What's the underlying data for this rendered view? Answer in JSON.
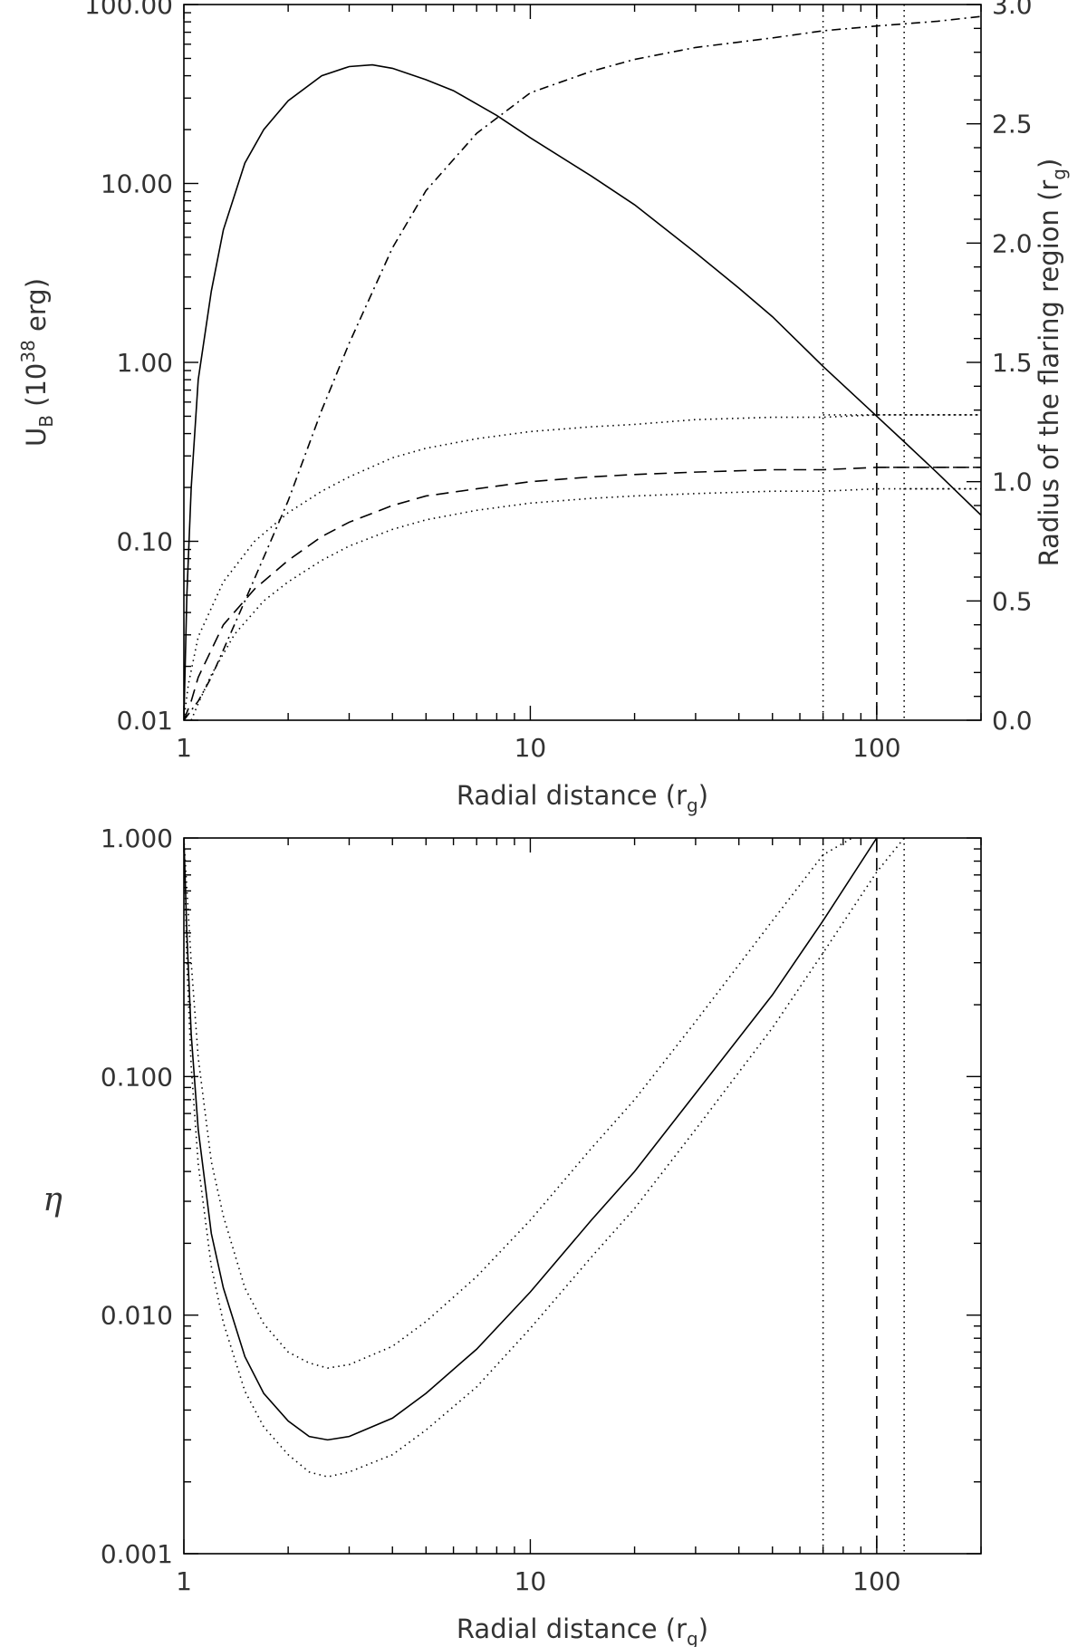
{
  "chart_data": [
    {
      "type": "line",
      "panel": "top",
      "xlabel": "Radial distance (r_g)",
      "ylabel_left": "U_B (10^38 erg)",
      "ylabel_right": "Radius of the flaring region (r_g)",
      "x_scale": "log",
      "xlim": [
        1,
        200
      ],
      "ylim_left": [
        0.01,
        100
      ],
      "ylim_left_scale": "log",
      "ylim_right": [
        0,
        3.0
      ],
      "ylim_right_scale": "linear",
      "x_tick_labels": [
        "1",
        "10",
        "100"
      ],
      "y_left_tick_labels": [
        "0.01",
        "0.10",
        "1.00",
        "10.00",
        "100.00"
      ],
      "y_right_tick_labels": [
        "0.0",
        "0.5",
        "1.0",
        "1.5",
        "2.0",
        "2.5",
        "3.0"
      ],
      "series": [
        {
          "axis": "left",
          "style": "solid",
          "x": [
            1.0,
            1.02,
            1.05,
            1.1,
            1.2,
            1.3,
            1.5,
            1.7,
            2.0,
            2.5,
            3.0,
            3.5,
            4.0,
            5.0,
            6.0,
            8.0,
            10,
            15,
            20,
            30,
            40,
            50,
            70,
            100,
            120,
            150,
            200
          ],
          "y": [
            0.01,
            0.05,
            0.2,
            0.8,
            2.5,
            5.5,
            13,
            20,
            29,
            40,
            45,
            46,
            44,
            38,
            33,
            24,
            18,
            11,
            7.6,
            4.1,
            2.6,
            1.8,
            0.95,
            0.5,
            0.36,
            0.24,
            0.14
          ]
        },
        {
          "axis": "right",
          "style": "dash-dot",
          "x": [
            1.0,
            1.1,
            1.2,
            1.5,
            2.0,
            2.5,
            3.0,
            4.0,
            5.0,
            7.0,
            10,
            15,
            20,
            30,
            50,
            70,
            100,
            150,
            200
          ],
          "y": [
            0.0,
            0.08,
            0.18,
            0.5,
            0.92,
            1.3,
            1.58,
            1.98,
            2.22,
            2.46,
            2.63,
            2.72,
            2.77,
            2.82,
            2.86,
            2.89,
            2.91,
            2.93,
            2.95
          ]
        },
        {
          "axis": "right",
          "style": "dotted",
          "x": [
            1.0,
            1.03,
            1.1,
            1.3,
            1.6,
            2.0,
            2.5,
            3.0,
            4.0,
            5.0,
            7.0,
            10,
            15,
            20,
            30,
            50,
            70,
            100,
            200
          ],
          "y": [
            0.0,
            0.15,
            0.35,
            0.58,
            0.75,
            0.87,
            0.96,
            1.02,
            1.1,
            1.14,
            1.18,
            1.21,
            1.23,
            1.24,
            1.26,
            1.27,
            1.27,
            1.28,
            1.28
          ]
        },
        {
          "axis": "right",
          "style": "dashed",
          "x": [
            1.0,
            1.05,
            1.1,
            1.3,
            1.6,
            2.0,
            2.5,
            3.0,
            4.0,
            5.0,
            7.0,
            10,
            15,
            20,
            30,
            50,
            70,
            100,
            200
          ],
          "y": [
            0.0,
            0.08,
            0.18,
            0.4,
            0.55,
            0.67,
            0.77,
            0.83,
            0.9,
            0.94,
            0.97,
            1.0,
            1.02,
            1.03,
            1.04,
            1.05,
            1.05,
            1.06,
            1.06
          ]
        },
        {
          "axis": "right",
          "style": "dotted",
          "x": [
            1.05,
            1.1,
            1.2,
            1.4,
            1.7,
            2.0,
            2.5,
            3.0,
            4.0,
            5.0,
            7.0,
            10,
            15,
            20,
            30,
            50,
            70,
            100,
            200
          ],
          "y": [
            0.0,
            0.07,
            0.19,
            0.36,
            0.5,
            0.58,
            0.67,
            0.73,
            0.8,
            0.84,
            0.88,
            0.91,
            0.93,
            0.94,
            0.95,
            0.96,
            0.96,
            0.97,
            0.97
          ]
        }
      ],
      "vlines": [
        {
          "x": 70,
          "style": "dotted"
        },
        {
          "x": 100,
          "style": "dashed"
        },
        {
          "x": 120,
          "style": "dotted"
        }
      ],
      "hlines": [
        {
          "x_from": 70,
          "y": 1.28,
          "axis": "right",
          "style": "dotted"
        },
        {
          "x_from": 100,
          "y": 1.06,
          "axis": "right",
          "style": "dashed"
        },
        {
          "x_from": 120,
          "y": 0.97,
          "axis": "right",
          "style": "dotted"
        }
      ]
    },
    {
      "type": "line",
      "panel": "bottom",
      "xlabel": "Radial distance (r_g)",
      "ylabel": "η",
      "x_scale": "log",
      "y_scale": "log",
      "xlim": [
        1,
        200
      ],
      "ylim": [
        0.001,
        1.0
      ],
      "x_tick_labels": [
        "1",
        "10",
        "100"
      ],
      "y_tick_labels": [
        "0.001",
        "0.010",
        "0.100",
        "1.000"
      ],
      "series": [
        {
          "style": "solid",
          "x": [
            1.0,
            1.02,
            1.05,
            1.1,
            1.2,
            1.3,
            1.5,
            1.7,
            2.0,
            2.3,
            2.6,
            3.0,
            4.0,
            5.0,
            7.0,
            10,
            15,
            20,
            30,
            50,
            70,
            100
          ],
          "y": [
            1.0,
            0.4,
            0.15,
            0.06,
            0.022,
            0.013,
            0.0067,
            0.0047,
            0.0036,
            0.0031,
            0.003,
            0.0031,
            0.0037,
            0.0047,
            0.0072,
            0.0125,
            0.025,
            0.04,
            0.085,
            0.22,
            0.45,
            1.0
          ]
        },
        {
          "style": "dotted",
          "x": [
            1.0,
            1.05,
            1.1,
            1.2,
            1.3,
            1.5,
            1.7,
            2.0,
            2.3,
            2.6,
            3.0,
            4.0,
            5.0,
            7.0,
            10,
            15,
            20,
            30,
            50,
            70,
            85
          ],
          "y": [
            1.0,
            0.3,
            0.12,
            0.044,
            0.026,
            0.013,
            0.0092,
            0.007,
            0.0063,
            0.006,
            0.0062,
            0.0074,
            0.0094,
            0.0145,
            0.025,
            0.05,
            0.08,
            0.17,
            0.45,
            0.85,
            1.0
          ]
        },
        {
          "style": "dotted",
          "x": [
            1.0,
            1.02,
            1.05,
            1.1,
            1.2,
            1.3,
            1.5,
            1.7,
            2.0,
            2.3,
            2.6,
            3.0,
            4.0,
            5.0,
            7.0,
            10,
            15,
            20,
            30,
            50,
            70,
            100,
            120
          ],
          "y": [
            1.0,
            0.3,
            0.11,
            0.043,
            0.016,
            0.0093,
            0.0048,
            0.0034,
            0.0026,
            0.0022,
            0.0021,
            0.0022,
            0.0026,
            0.0033,
            0.005,
            0.0088,
            0.0175,
            0.028,
            0.06,
            0.16,
            0.33,
            0.72,
            1.0
          ]
        }
      ],
      "vlines": [
        {
          "x": 70,
          "style": "dotted"
        },
        {
          "x": 100,
          "style": "dashed"
        },
        {
          "x": 120,
          "style": "dotted"
        }
      ]
    }
  ]
}
